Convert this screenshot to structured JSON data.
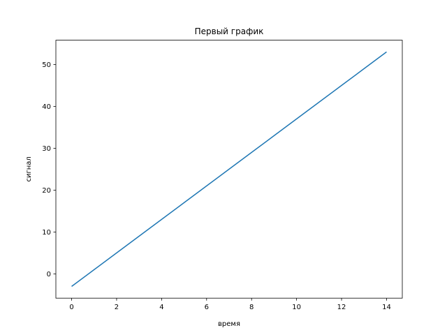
{
  "chart_data": {
    "type": "line",
    "title": "Первый график",
    "xlabel": "время",
    "ylabel": "сигнал",
    "xlim": [
      -0.7,
      14.7
    ],
    "ylim": [
      -5.8,
      55.8
    ],
    "xticks": [
      0,
      2,
      4,
      6,
      8,
      10,
      12,
      14
    ],
    "yticks": [
      0,
      10,
      20,
      30,
      40,
      50
    ],
    "grid": false,
    "series": [
      {
        "color": "#1f77b4",
        "x": [
          0,
          1,
          2,
          3,
          4,
          5,
          6,
          7,
          8,
          9,
          10,
          11,
          12,
          13,
          14
        ],
        "y": [
          -3,
          1,
          5,
          9,
          13,
          17,
          21,
          25,
          29,
          33,
          37,
          41,
          45,
          49,
          53
        ]
      }
    ]
  }
}
